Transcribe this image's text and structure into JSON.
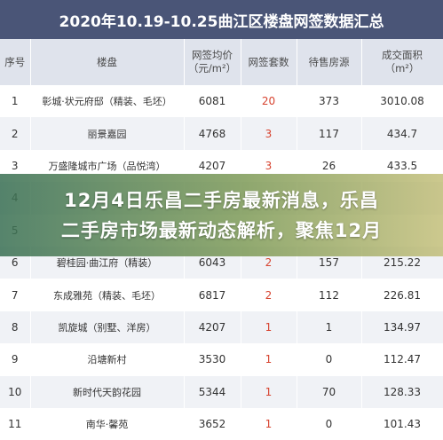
{
  "title": "2020年10.19-10.25曲江区楼盘网签数据汇总",
  "headers": {
    "index": "序号",
    "project": "楼盘",
    "avg_price_1": "网签均价",
    "avg_price_2": "（元/m²）",
    "signed_units": "网签套数",
    "for_sale": "待售房源",
    "area_1": "成交面积",
    "area_2": "（m²）"
  },
  "rows": [
    {
      "index": "1",
      "project": "彰城·状元府邸（精装、毛坯）",
      "price": "6081",
      "units": "20",
      "sale": "373",
      "area": "3010.08"
    },
    {
      "index": "2",
      "project": "丽景嘉园",
      "price": "4768",
      "units": "3",
      "sale": "117",
      "area": "434.7"
    },
    {
      "index": "3",
      "project": "万盛隆城市广场（品悦湾）",
      "price": "4207",
      "units": "3",
      "sale": "26",
      "area": "433.5"
    },
    {
      "index": "4",
      "project": "",
      "price": "",
      "units": "",
      "sale": "",
      "area": ""
    },
    {
      "index": "5",
      "project": "",
      "price": "",
      "units": "",
      "sale": "",
      "area": ""
    },
    {
      "index": "6",
      "project": "碧桂园·曲江府（精装）",
      "price": "6043",
      "units": "2",
      "sale": "157",
      "area": "215.22"
    },
    {
      "index": "7",
      "project": "东成雅苑（精装、毛坯）",
      "price": "6817",
      "units": "2",
      "sale": "112",
      "area": "226.81"
    },
    {
      "index": "8",
      "project": "凯旋城（别墅、洋房）",
      "price": "4207",
      "units": "1",
      "sale": "1",
      "area": "134.97"
    },
    {
      "index": "9",
      "project": "沿塘新村",
      "price": "3530",
      "units": "1",
      "sale": "0",
      "area": "112.47"
    },
    {
      "index": "10",
      "project": "新时代天韵花园",
      "price": "5344",
      "units": "1",
      "sale": "70",
      "area": "128.33"
    },
    {
      "index": "11",
      "project": "南华·馨苑",
      "price": "3652",
      "units": "1",
      "sale": "0",
      "area": "101.43"
    }
  ],
  "overlay": {
    "line1": "12月4日乐昌二手房最新消息，乐昌",
    "line2": "二手房市场最新动态解析，聚焦12月"
  },
  "colors": {
    "header_bar": "#4a5577",
    "highlight": "#d7432f"
  }
}
